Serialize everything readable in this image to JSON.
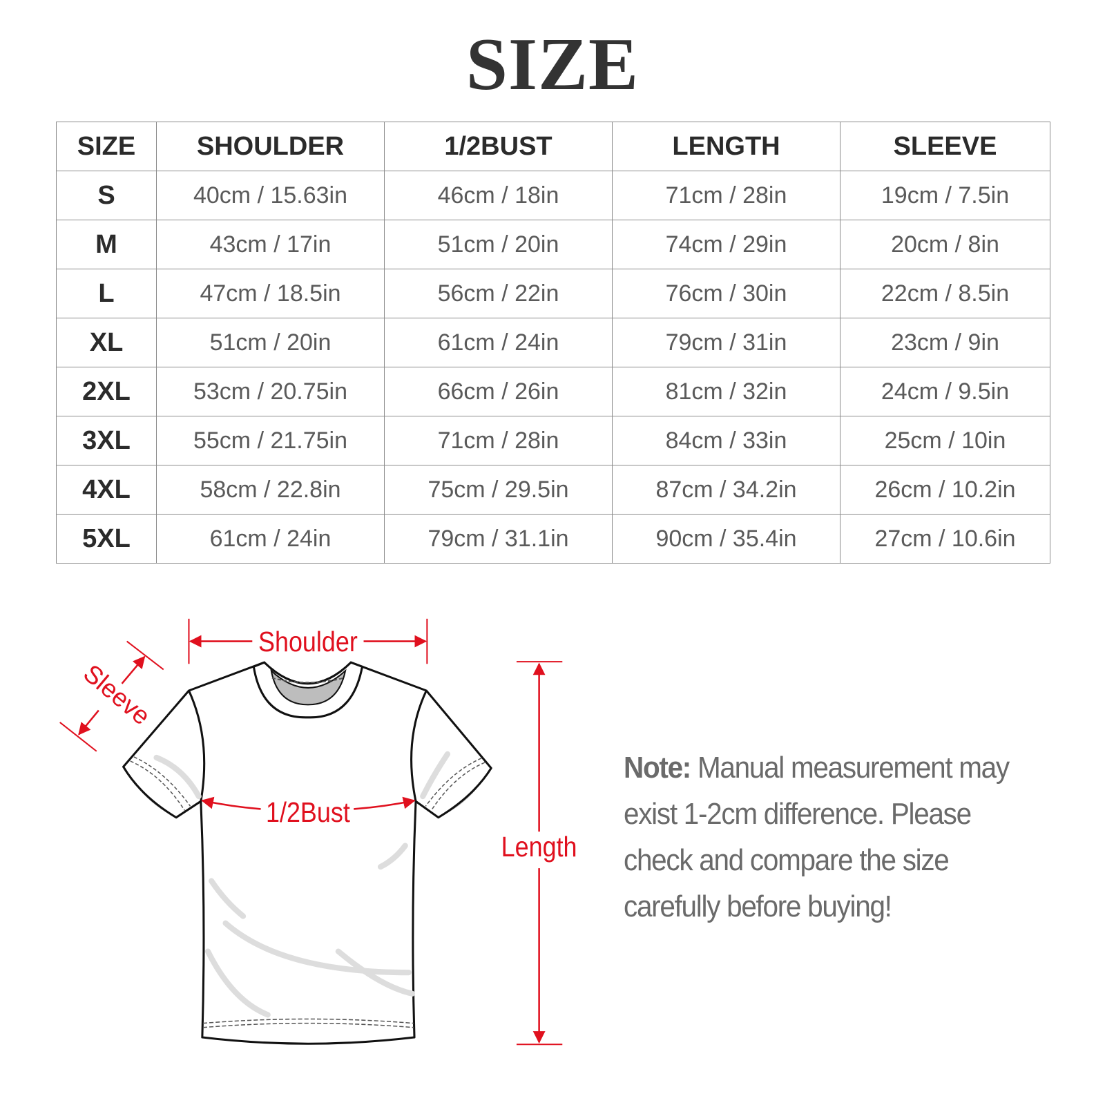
{
  "title": "SIZE",
  "table": {
    "headers": [
      "SIZE",
      "SHOULDER",
      "1/2BUST",
      "LENGTH",
      "SLEEVE"
    ],
    "rows": [
      [
        "S",
        "40cm / 15.63in",
        "46cm / 18in",
        "71cm / 28in",
        "19cm / 7.5in"
      ],
      [
        "M",
        "43cm / 17in",
        "51cm / 20in",
        "74cm / 29in",
        "20cm / 8in"
      ],
      [
        "L",
        "47cm / 18.5in",
        "56cm / 22in",
        "76cm / 30in",
        "22cm / 8.5in"
      ],
      [
        "XL",
        "51cm / 20in",
        "61cm / 24in",
        "79cm / 31in",
        "23cm / 9in"
      ],
      [
        "2XL",
        "53cm / 20.75in",
        "66cm / 26in",
        "81cm / 32in",
        "24cm / 9.5in"
      ],
      [
        "3XL",
        "55cm / 21.75in",
        "71cm / 28in",
        "84cm / 33in",
        "25cm / 10in"
      ],
      [
        "4XL",
        "58cm / 22.8in",
        "75cm / 29.5in",
        "87cm / 34.2in",
        "26cm / 10.2in"
      ],
      [
        "5XL",
        "61cm / 24in",
        "79cm / 31.1in",
        "90cm / 35.4in",
        "27cm / 10.6in"
      ]
    ]
  },
  "diagram": {
    "shoulder_label": "Shoulder",
    "sleeve_label": "Sleeve",
    "bust_label": "1/2Bust",
    "length_label": "Length",
    "accent_color": "#e0101e"
  },
  "note": {
    "label": "Note:",
    "text": " Manual measurement may exist 1-2cm difference. Please check and compare the size carefully before buying!"
  }
}
